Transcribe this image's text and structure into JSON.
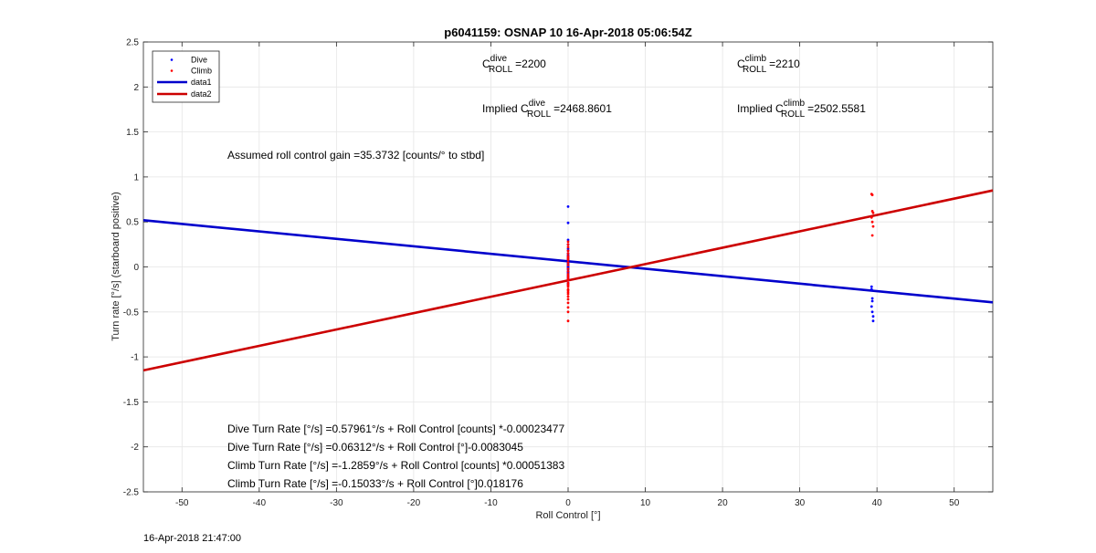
{
  "chart_data": {
    "type": "scatter",
    "title": "p6041159: OSNAP 10 16-Apr-2018 05:06:54Z",
    "xlabel": "Roll Control [°]",
    "ylabel": "Turn rate [°/s] (starboard positive)",
    "xlim": [
      -55,
      55
    ],
    "ylim": [
      -2.5,
      2.5
    ],
    "xticks": [
      -50,
      -40,
      -30,
      -20,
      -10,
      0,
      10,
      20,
      30,
      40,
      50
    ],
    "yticks": [
      -2.5,
      -2,
      -1.5,
      -1,
      -0.5,
      0,
      0.5,
      1,
      1.5,
      2,
      2.5
    ],
    "xtick_labels": [
      "-50",
      "-40",
      "-30",
      "-20",
      "-10",
      "0",
      "10",
      "20",
      "30",
      "40",
      "50"
    ],
    "ytick_labels": [
      "-2.5",
      "-2",
      "-1.5",
      "-1",
      "-0.5",
      "0",
      "0.5",
      "1",
      "1.5",
      "2",
      "2.5"
    ],
    "grid": true,
    "legend_position": "top-left",
    "legend": [
      {
        "label": "Dive",
        "kind": "marker",
        "color": "#0000ff"
      },
      {
        "label": "Climb",
        "kind": "marker",
        "color": "#ff0000"
      },
      {
        "label": "data1",
        "kind": "line",
        "color": "#0000cc"
      },
      {
        "label": "data2",
        "kind": "line",
        "color": "#cc0000"
      }
    ],
    "series": [
      {
        "name": "Dive",
        "type": "scatter",
        "color": "#0000ff",
        "x": [
          0,
          0,
          0,
          0,
          0,
          0,
          0,
          0,
          0,
          0,
          0,
          0,
          0,
          0,
          0,
          0,
          0,
          0,
          0,
          0,
          0,
          0,
          0,
          0,
          0,
          0,
          0,
          0,
          0,
          0,
          39.3,
          39.3,
          39.4,
          39.4,
          39.4,
          39.5,
          39.5,
          39.3
        ],
        "y": [
          0.67,
          0.49,
          0.3,
          0.25,
          0.2,
          0.18,
          0.15,
          0.13,
          0.11,
          0.09,
          0.08,
          0.06,
          0.05,
          0.04,
          0.03,
          0.02,
          0.01,
          0.0,
          -0.01,
          -0.02,
          -0.03,
          -0.05,
          -0.07,
          -0.09,
          -0.11,
          -0.13,
          -0.15,
          -0.18,
          -0.2,
          -0.06,
          -0.22,
          -0.25,
          -0.35,
          -0.38,
          -0.5,
          -0.55,
          -0.6,
          -0.44
        ]
      },
      {
        "name": "Climb",
        "type": "scatter",
        "color": "#ff0000",
        "x": [
          0,
          0,
          0,
          0,
          0,
          0,
          0,
          0,
          0,
          0,
          0,
          0,
          0,
          0,
          0,
          0,
          0,
          0,
          0,
          0,
          0,
          0,
          0,
          0,
          0,
          0,
          0,
          0,
          0,
          0,
          39.3,
          39.4,
          39.4,
          39.5,
          39.3,
          39.4,
          39.5,
          39.4
        ],
        "y": [
          0.28,
          0.25,
          0.22,
          0.18,
          0.15,
          0.12,
          0.1,
          0.08,
          0.05,
          0.02,
          -0.02,
          -0.05,
          -0.08,
          -0.1,
          -0.12,
          -0.15,
          -0.18,
          -0.2,
          -0.22,
          -0.25,
          -0.28,
          -0.3,
          -0.33,
          -0.36,
          -0.4,
          -0.45,
          -0.5,
          -0.6,
          -0.14,
          -0.26,
          0.81,
          0.8,
          0.62,
          0.6,
          0.55,
          0.5,
          0.45,
          0.35
        ]
      },
      {
        "name": "data1",
        "type": "line",
        "color": "#0000cc",
        "x": [
          -55,
          55
        ],
        "y": [
          0.5197,
          -0.3937
        ]
      },
      {
        "name": "data2",
        "type": "line",
        "color": "#cc0000",
        "x": [
          -55,
          55
        ],
        "y": [
          -1.1501,
          0.8495
        ]
      }
    ],
    "annotations": {
      "c_dive": {
        "prefix": "C",
        "sup": "dive",
        "sub": "ROLL",
        "value": "=2200"
      },
      "c_climb": {
        "prefix": "C",
        "sup": "climb",
        "sub": "ROLL",
        "value": "=2210"
      },
      "implied_dive": {
        "prefix": "Implied C",
        "sup": "dive",
        "sub": "ROLL",
        "value": "=2468.8601"
      },
      "implied_climb": {
        "prefix": "Implied C",
        "sup": "climb",
        "sub": "ROLL",
        "value": "=2502.5581"
      },
      "gain": "Assumed roll control gain =35.3732 [counts/° to stbd]",
      "fits": [
        "Dive Turn Rate [°/s] =0.57961°/s + Roll Control [counts] *-0.00023477",
        "Dive Turn Rate [°/s] =0.06312°/s + Roll Control [°]-0.0083045",
        "Climb Turn Rate [°/s] =-1.2859°/s + Roll Control [counts] *0.00051383",
        "Climb Turn Rate [°/s] =-0.15033°/s + Roll Control [°]0.018176"
      ]
    },
    "timestamp": "16-Apr-2018 21:47:00"
  }
}
